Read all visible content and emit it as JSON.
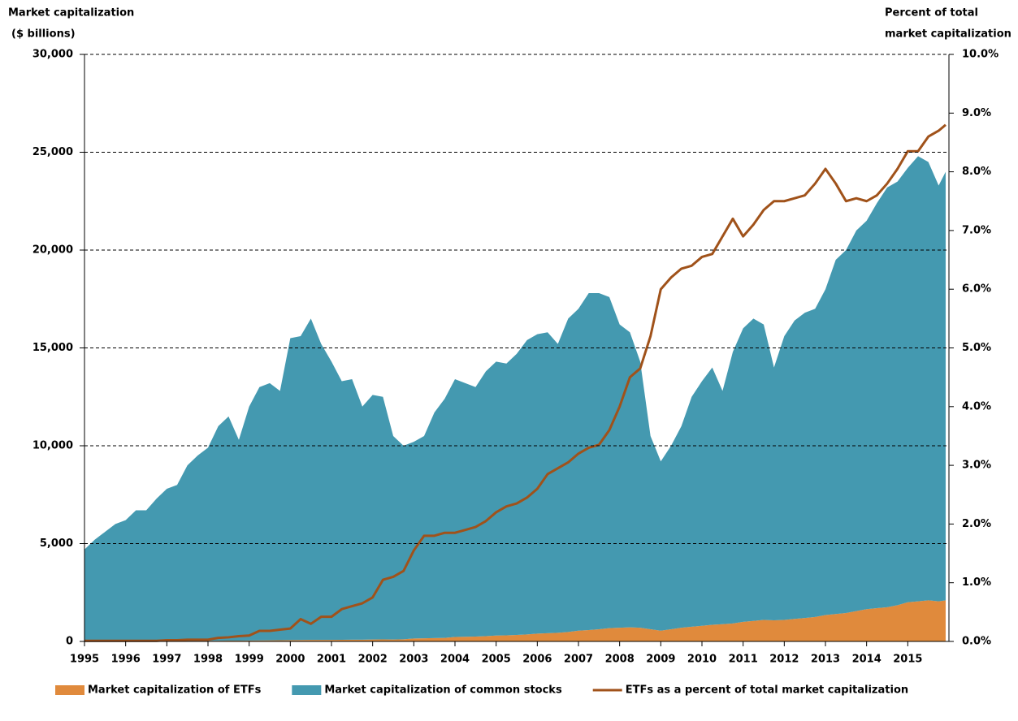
{
  "chart_data": {
    "type": "area",
    "ylabel": [
      "Market capitalization",
      "($ billions)"
    ],
    "y2label": [
      "Percent of total",
      "market capitalization"
    ],
    "xlim": [
      1995,
      2016
    ],
    "xticks": [
      1995,
      1996,
      1997,
      1998,
      1999,
      2000,
      2001,
      2002,
      2003,
      2004,
      2005,
      2006,
      2007,
      2008,
      2009,
      2010,
      2011,
      2012,
      2013,
      2014,
      2015
    ],
    "ylim": [
      0,
      30000
    ],
    "yticks": [
      0,
      {
        "value": 5000,
        "label": "5,000"
      },
      {
        "value": 10000,
        "label": "10,000"
      },
      {
        "value": 15000,
        "label": "15,000"
      },
      {
        "value": 20000,
        "label": "20,000"
      },
      {
        "value": 25000,
        "label": "25,000"
      },
      {
        "value": 30000,
        "label": "30,000"
      }
    ],
    "y2lim": [
      0,
      10
    ],
    "y2ticks": [
      {
        "value": 0,
        "label": "0.0%"
      },
      {
        "value": 1,
        "label": "1.0%"
      },
      {
        "value": 2,
        "label": "2.0%"
      },
      {
        "value": 3,
        "label": "3.0%"
      },
      {
        "value": 4,
        "label": "4.0%"
      },
      {
        "value": 5,
        "label": "5.0%"
      },
      {
        "value": 6,
        "label": "6.0%"
      },
      {
        "value": 7,
        "label": "7.0%"
      },
      {
        "value": 8,
        "label": "8.0%"
      },
      {
        "value": 9,
        "label": "9.0%"
      },
      {
        "value": 10,
        "label": "10.0%"
      }
    ],
    "grid": true,
    "stacked": true,
    "legend": "bottom",
    "x": [
      1995,
      1995.25,
      1995.5,
      1995.75,
      1996,
      1996.25,
      1996.5,
      1996.75,
      1997,
      1997.25,
      1997.5,
      1997.75,
      1998,
      1998.25,
      1998.5,
      1998.75,
      1999,
      1999.25,
      1999.5,
      1999.75,
      2000,
      2000.25,
      2000.5,
      2000.75,
      2001,
      2001.25,
      2001.5,
      2001.75,
      2002,
      2002.25,
      2002.5,
      2002.75,
      2003,
      2003.25,
      2003.5,
      2003.75,
      2004,
      2004.25,
      2004.5,
      2004.75,
      2005,
      2005.25,
      2005.5,
      2005.75,
      2006,
      2006.25,
      2006.5,
      2006.75,
      2007,
      2007.25,
      2007.5,
      2007.75,
      2008,
      2008.25,
      2008.5,
      2008.75,
      2009,
      2009.25,
      2009.5,
      2009.75,
      2010,
      2010.25,
      2010.5,
      2010.75,
      2011,
      2011.25,
      2011.5,
      2011.75,
      2012,
      2012.25,
      2012.5,
      2012.75,
      2013,
      2013.25,
      2013.5,
      2013.75,
      2014,
      2014.25,
      2014.5,
      2014.75,
      2015,
      2015.25,
      2015.5,
      2015.75,
      2015.92
    ],
    "series": [
      {
        "name": "Market capitalization of ETFs",
        "color": "#e08a3c",
        "type": "area",
        "values": [
          5,
          5,
          6,
          7,
          8,
          9,
          10,
          12,
          14,
          16,
          20,
          25,
          30,
          35,
          40,
          40,
          45,
          50,
          55,
          60,
          70,
          75,
          80,
          80,
          80,
          85,
          90,
          90,
          100,
          105,
          100,
          110,
          150,
          160,
          170,
          180,
          230,
          240,
          250,
          270,
          300,
          310,
          330,
          360,
          400,
          420,
          440,
          480,
          550,
          580,
          620,
          680,
          700,
          720,
          700,
          620,
          550,
          620,
          700,
          750,
          800,
          850,
          880,
          920,
          1000,
          1050,
          1100,
          1080,
          1100,
          1150,
          1200,
          1250,
          1350,
          1400,
          1450,
          1550,
          1650,
          1700,
          1750,
          1850,
          2000,
          2050,
          2100,
          2050,
          2100
        ]
      },
      {
        "name": "Market capitalization of common stocks",
        "color": "#4499b0",
        "type": "area",
        "values": [
          4695,
          5195,
          5594,
          5993,
          6192,
          6691,
          6690,
          7288,
          7786,
          7984,
          8980,
          9475,
          9870,
          10965,
          11460,
          10260,
          11955,
          12950,
          13145,
          12740,
          15430,
          15525,
          16420,
          15120,
          14220,
          13215,
          13310,
          11910,
          12500,
          12395,
          10400,
          9890,
          10050,
          10340,
          11530,
          12220,
          13170,
          12960,
          12750,
          13530,
          14000,
          13890,
          14370,
          15040,
          15300,
          15380,
          14760,
          16020,
          16450,
          17220,
          17180,
          16920,
          15500,
          15080,
          13600,
          9880,
          8650,
          9380,
          10300,
          11750,
          12500,
          13150,
          11920,
          13880,
          15000,
          15450,
          15100,
          12920,
          14500,
          15250,
          15600,
          15750,
          16650,
          18100,
          18550,
          19450,
          19850,
          20700,
          21450,
          21650,
          22200,
          22750,
          22400,
          21250,
          21900
        ]
      },
      {
        "name": "ETFs as a percent of total market capitalization",
        "color": "#a0521a",
        "type": "line",
        "axis": "y2",
        "values": [
          0.01,
          0.01,
          0.01,
          0.01,
          0.01,
          0.01,
          0.01,
          0.01,
          0.02,
          0.02,
          0.03,
          0.03,
          0.03,
          0.06,
          0.07,
          0.09,
          0.1,
          0.18,
          0.18,
          0.2,
          0.22,
          0.38,
          0.3,
          0.42,
          0.42,
          0.55,
          0.6,
          0.65,
          0.75,
          1.05,
          1.1,
          1.2,
          1.55,
          1.8,
          1.8,
          1.85,
          1.85,
          1.9,
          1.95,
          2.05,
          2.2,
          2.3,
          2.35,
          2.45,
          2.6,
          2.85,
          2.95,
          3.05,
          3.2,
          3.3,
          3.35,
          3.6,
          4.0,
          4.5,
          4.65,
          5.2,
          6.0,
          6.2,
          6.35,
          6.4,
          6.55,
          6.6,
          6.9,
          7.2,
          6.9,
          7.1,
          7.35,
          7.5,
          7.5,
          7.55,
          7.6,
          7.8,
          8.05,
          7.8,
          7.5,
          7.55,
          7.5,
          7.6,
          7.8,
          8.05,
          8.35,
          8.35,
          8.6,
          8.7,
          8.8
        ]
      }
    ]
  }
}
